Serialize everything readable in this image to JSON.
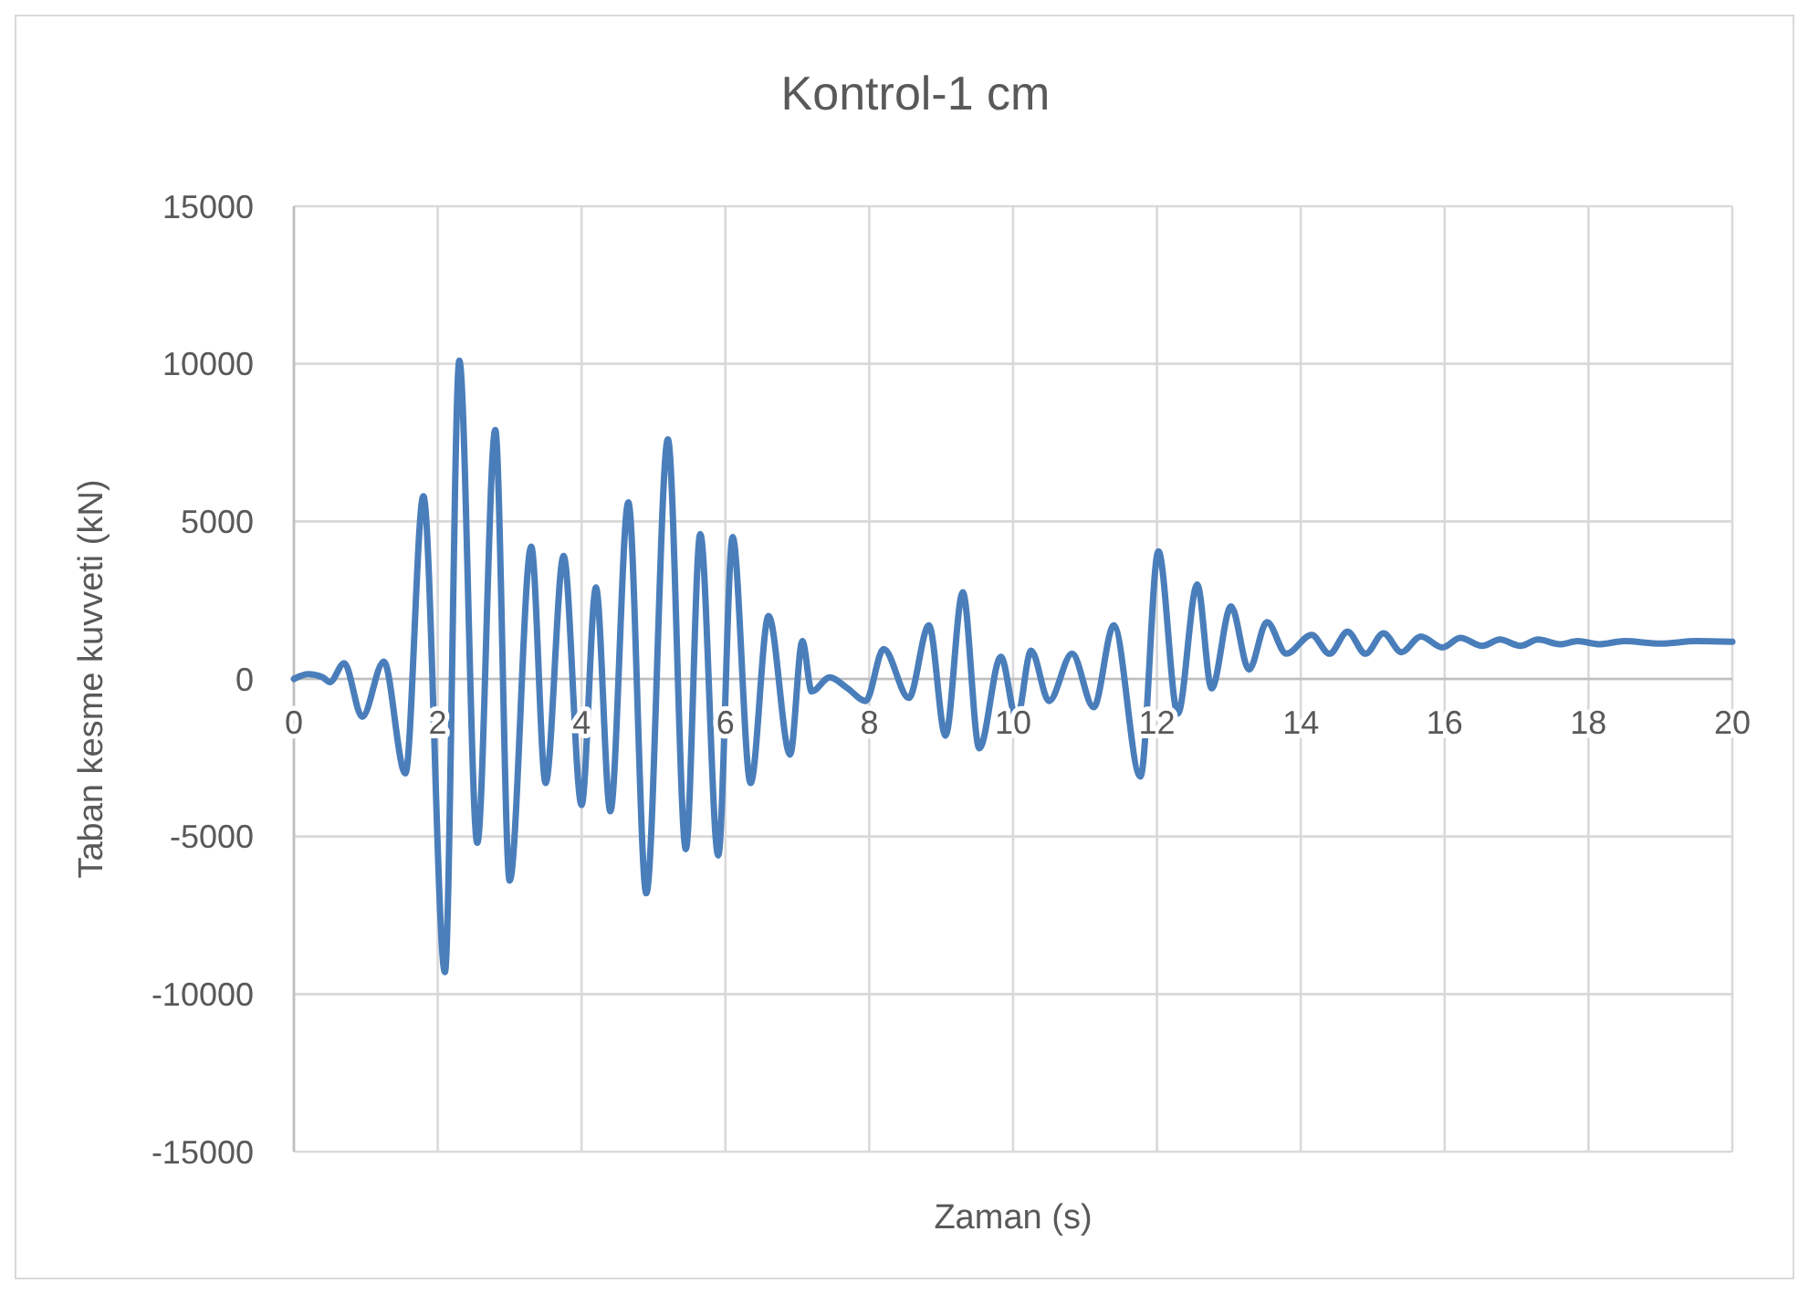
{
  "chart_data": {
    "type": "line",
    "title": "Kontrol-1 cm",
    "xlabel": "Zaman (s)",
    "ylabel": "Taban kesme kuvveti (kN)",
    "x": [
      0,
      0.2,
      0.4,
      0.5,
      0.7,
      0.95,
      1.25,
      1.55,
      1.8,
      2.1,
      2.3,
      2.55,
      2.8,
      3.0,
      3.3,
      3.5,
      3.75,
      4.0,
      4.2,
      4.4,
      4.65,
      4.9,
      5.2,
      5.45,
      5.65,
      5.9,
      6.1,
      6.35,
      6.6,
      6.9,
      7.07,
      7.2,
      7.45,
      7.7,
      7.95,
      8.2,
      8.55,
      8.83,
      9.06,
      9.3,
      9.53,
      9.83,
      10.05,
      10.25,
      10.5,
      10.82,
      11.12,
      11.4,
      11.77,
      12.02,
      12.29,
      12.56,
      12.76,
      13.03,
      13.28,
      13.53,
      13.8,
      14.15,
      14.4,
      14.65,
      14.9,
      15.15,
      15.4,
      15.67,
      15.97,
      16.22,
      16.52,
      16.77,
      17.05,
      17.3,
      17.6,
      17.85,
      18.15,
      18.5,
      19,
      19.5,
      20
    ],
    "series": [
      {
        "color": "#4a7ebb",
        "values": [
          0,
          150,
          50,
          -100,
          500,
          -1200,
          550,
          -3000,
          5800,
          -9300,
          10100,
          -5200,
          7900,
          -6400,
          4200,
          -3300,
          3900,
          -4000,
          2900,
          -4200,
          5600,
          -6800,
          7600,
          -5400,
          4600,
          -5600,
          4500,
          -3300,
          2000,
          -2400,
          1200,
          -400,
          50,
          -300,
          -700,
          950,
          -600,
          1700,
          -1800,
          2750,
          -2200,
          700,
          -1300,
          900,
          -700,
          800,
          -900,
          1700,
          -3100,
          4050,
          -1100,
          3000,
          -300,
          2300,
          300,
          1800,
          800,
          1400,
          800,
          1500,
          800,
          1450,
          850,
          1350,
          1000,
          1300,
          1050,
          1250,
          1050,
          1250,
          1100,
          1200,
          1100,
          1200,
          1120,
          1200,
          1180
        ]
      }
    ],
    "xlim": [
      0,
      20
    ],
    "xticks": [
      0,
      2,
      4,
      6,
      8,
      10,
      12,
      14,
      16,
      18,
      20
    ],
    "ylim": [
      -15000,
      15000
    ],
    "yticks": [
      -15000,
      -10000,
      -5000,
      0,
      5000,
      10000,
      15000
    ],
    "grid": true,
    "marker": "none",
    "line_style": "solid"
  }
}
